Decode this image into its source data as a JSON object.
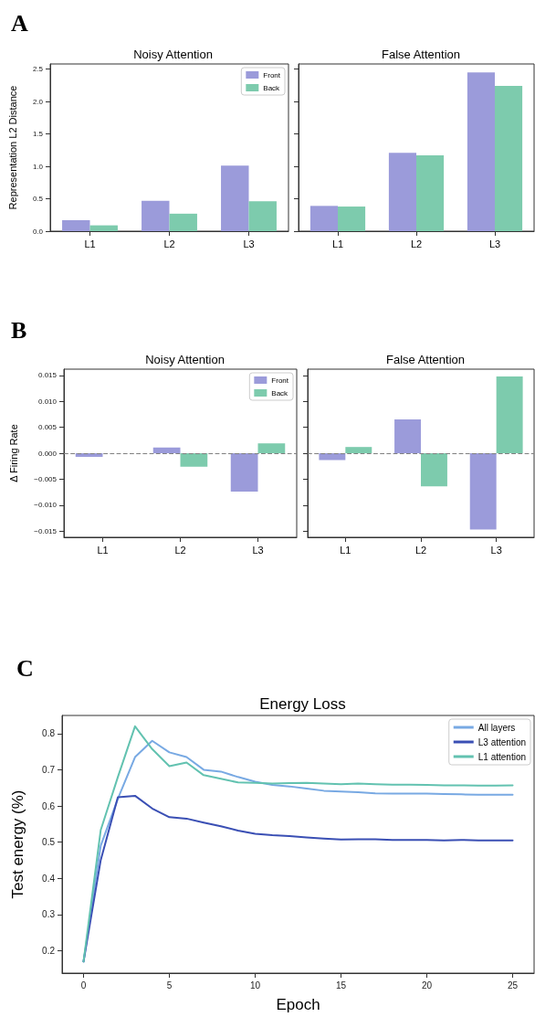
{
  "chart_data": [
    {
      "type": "bar",
      "title": "Noisy Attention",
      "ylabel": "Representation L2 Distance",
      "annotations": [
        "A"
      ],
      "categories": [
        "L1",
        "L2",
        "L3"
      ],
      "series": [
        {
          "name": "Front",
          "color": "#9b9bda",
          "values": [
            0.17,
            0.47,
            1.01
          ]
        },
        {
          "name": "Back",
          "color": "#7dcbad",
          "values": [
            0.09,
            0.27,
            0.46
          ]
        }
      ],
      "ylim": [
        0,
        2.58
      ],
      "yticks": [
        {
          "value": 0,
          "label": "0.0"
        },
        0.5,
        {
          "value": 1,
          "label": "1.0"
        },
        1.5,
        {
          "value": 2,
          "label": "2.0"
        },
        2.5
      ],
      "grid": false,
      "legend": "top right"
    },
    {
      "type": "bar",
      "title": "False Attention",
      "categories": [
        "L1",
        "L2",
        "L3"
      ],
      "series": [
        {
          "color": "#9b9bda",
          "values": [
            0.39,
            1.21,
            2.45
          ]
        },
        {
          "color": "#7dcbad",
          "values": [
            0.38,
            1.17,
            2.24
          ]
        }
      ],
      "ylim": [
        0,
        2.58
      ],
      "yticks": [
        0,
        0.5,
        1,
        1.5,
        2,
        2.5
      ],
      "grid": false,
      "tick_labels": "x"
    },
    {
      "type": "bar",
      "title": "Noisy Attention",
      "ylabel": "Δ Firing Rate",
      "annotations": [
        "B"
      ],
      "categories": [
        "L1",
        "L2",
        "L3"
      ],
      "series": [
        {
          "name": "Front",
          "color": "#9b9bda",
          "values": [
            -0.0007,
            0.0011,
            -0.0074
          ]
        },
        {
          "name": "Back",
          "color": "#7dcbad",
          "values": [
            0,
            -0.0026,
            0.0019
          ]
        }
      ],
      "ylim": [
        -0.0162,
        0.0162
      ],
      "yticks": [
        {
          "value": -0.015,
          "label": "−0.015"
        },
        {
          "value": -0.01,
          "label": "−0.010"
        },
        {
          "value": -0.005,
          "label": "−0.005"
        },
        {
          "value": 0,
          "label": "0.000"
        },
        0.005,
        {
          "value": 0.01,
          "label": "0.010"
        },
        0.015
      ],
      "grid": false,
      "legend": "top right",
      "ref_lines": [
        {
          "axis": "y",
          "value": 0,
          "color": "#808080",
          "line_style": "dashed"
        }
      ]
    },
    {
      "type": "bar",
      "title": "False Attention",
      "categories": [
        "L1",
        "L2",
        "L3"
      ],
      "series": [
        {
          "color": "#9b9bda",
          "values": [
            -0.0013,
            0.0065,
            -0.0147
          ]
        },
        {
          "color": "#7dcbad",
          "values": [
            0.0012,
            -0.0064,
            0.0148
          ]
        }
      ],
      "ylim": [
        -0.0162,
        0.0162
      ],
      "yticks": [
        -0.015,
        -0.01,
        -0.005,
        0,
        0.005,
        0.01,
        0.015
      ],
      "grid": false,
      "tick_labels": "x",
      "ref_lines": [
        {
          "axis": "y",
          "value": 0,
          "color": "#808080",
          "line_style": "dashed"
        }
      ]
    },
    {
      "type": "line",
      "title": "Energy Loss",
      "xlabel": "Epoch",
      "ylabel": "Test energy (%)",
      "annotations": [
        "C"
      ],
      "x": [
        0,
        1,
        2,
        3,
        4,
        5,
        6,
        7,
        8,
        9,
        10,
        11,
        12,
        13,
        14,
        15,
        16,
        17,
        18,
        19,
        20,
        21,
        22,
        23,
        24,
        25
      ],
      "series": [
        {
          "name": "All layers",
          "color": "#78a9e3",
          "values": [
            0.17,
            0.49,
            0.62,
            0.735,
            0.78,
            0.748,
            0.735,
            0.7,
            0.695,
            0.68,
            0.667,
            0.658,
            0.654,
            0.648,
            0.642,
            0.64,
            0.638,
            0.635,
            0.634,
            0.634,
            0.634,
            0.633,
            0.632,
            0.631,
            0.631,
            0.631
          ]
        },
        {
          "name": "L3 attention",
          "color": "#3a4fb4",
          "values": [
            0.17,
            0.45,
            0.624,
            0.628,
            0.593,
            0.569,
            0.565,
            0.554,
            0.544,
            0.532,
            0.523,
            0.519,
            0.517,
            0.513,
            0.51,
            0.507,
            0.508,
            0.508,
            0.506,
            0.506,
            0.506,
            0.505,
            0.506,
            0.505,
            0.505,
            0.505
          ]
        },
        {
          "name": "L1 attention",
          "color": "#62c2b0",
          "values": [
            0.17,
            0.533,
            0.68,
            0.82,
            0.757,
            0.71,
            0.72,
            0.685,
            0.675,
            0.665,
            0.664,
            0.662,
            0.663,
            0.664,
            0.662,
            0.66,
            0.662,
            0.66,
            0.659,
            0.659,
            0.658,
            0.657,
            0.657,
            0.656,
            0.656,
            0.657
          ]
        }
      ],
      "xlim": [
        -1.25,
        26.25
      ],
      "xticks": [
        0,
        5,
        10,
        15,
        20,
        25
      ],
      "ylim": [
        0.138,
        0.85
      ],
      "yticks": [
        0.2,
        0.3,
        0.4,
        0.5,
        0.6,
        0.7,
        0.8
      ],
      "grid": false,
      "legend": "top right",
      "marker": "none"
    }
  ]
}
